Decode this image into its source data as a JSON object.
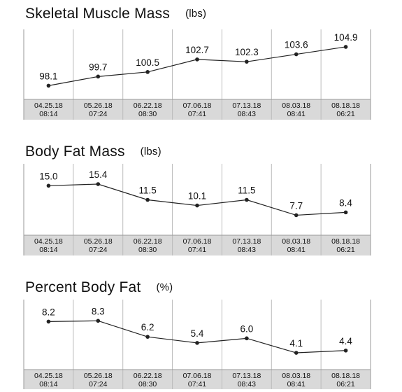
{
  "chart_data": [
    {
      "type": "line",
      "title": "Skeletal Muscle Mass",
      "unit": "(lbs)",
      "x": [
        "04.25.18 08:14",
        "05.26.18 07:24",
        "06.22.18 08:30",
        "07.06.18 07:41",
        "07.13.18 08:43",
        "08.03.18 08:41",
        "08.18.18 06:21"
      ],
      "x_dates": [
        "04.25.18",
        "05.26.18",
        "06.22.18",
        "07.06.18",
        "07.13.18",
        "08.03.18",
        "08.18.18"
      ],
      "x_times": [
        "08:14",
        "07:24",
        "08:30",
        "07:41",
        "08:43",
        "08:41",
        "06:21"
      ],
      "values": [
        98.1,
        99.7,
        100.5,
        102.7,
        102.3,
        103.6,
        104.9
      ],
      "labels": [
        "98.1",
        "99.7",
        "100.5",
        "102.7",
        "102.3",
        "103.6",
        "104.9"
      ],
      "ylim": [
        96.8,
        106.0
      ]
    },
    {
      "type": "line",
      "title": "Body Fat Mass",
      "unit": "(lbs)",
      "x": [
        "04.25.18 08:14",
        "05.26.18 07:24",
        "06.22.18 08:30",
        "07.06.18 07:41",
        "07.13.18 08:43",
        "08.03.18 08:41",
        "08.18.18 06:21"
      ],
      "x_dates": [
        "04.25.18",
        "05.26.18",
        "06.22.18",
        "07.06.18",
        "07.13.18",
        "08.03.18",
        "08.18.18"
      ],
      "x_times": [
        "08:14",
        "07:24",
        "08:30",
        "07:41",
        "08:43",
        "08:41",
        "06:21"
      ],
      "values": [
        15.0,
        15.4,
        11.5,
        10.1,
        11.5,
        7.7,
        8.4
      ],
      "labels": [
        "15.0",
        "15.4",
        "11.5",
        "10.1",
        "11.5",
        "7.7",
        "8.4"
      ],
      "ylim": [
        5.0,
        18.0
      ]
    },
    {
      "type": "line",
      "title": "Percent Body Fat",
      "unit": "(%)",
      "x": [
        "04.25.18 08:14",
        "05.26.18 07:24",
        "06.22.18 08:30",
        "07.06.18 07:41",
        "07.13.18 08:43",
        "08.03.18 08:41",
        "08.18.18 06:21"
      ],
      "x_dates": [
        "04.25.18",
        "05.26.18",
        "06.22.18",
        "07.06.18",
        "07.13.18",
        "08.03.18",
        "08.18.18"
      ],
      "x_times": [
        "08:14",
        "07:24",
        "08:30",
        "07:41",
        "08:43",
        "08:41",
        "06:21"
      ],
      "values": [
        8.2,
        8.3,
        6.2,
        5.4,
        6.0,
        4.1,
        4.4
      ],
      "labels": [
        "8.2",
        "8.3",
        "6.2",
        "5.4",
        "6.0",
        "4.1",
        "4.4"
      ],
      "ylim": [
        3.0,
        9.8
      ]
    }
  ],
  "colors": {
    "line": "#222222",
    "grid": "#bbbbbb",
    "axis_band": "#d9d9d9"
  }
}
